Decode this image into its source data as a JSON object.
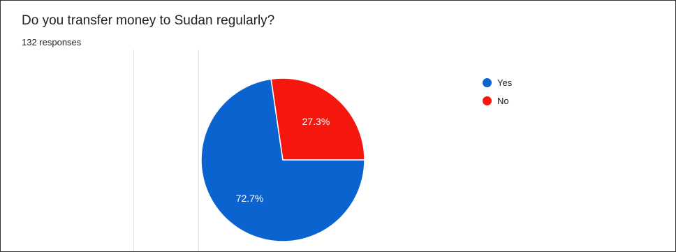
{
  "question": "Do you transfer money to Sudan regularly?",
  "responses": "132 responses",
  "chart_data": {
    "type": "pie",
    "title": "Do you transfer money to Sudan regularly?",
    "subtitle": "132 responses",
    "categories": [
      "Yes",
      "No"
    ],
    "values": [
      72.7,
      27.3
    ],
    "labels": [
      "72.7%",
      "27.3%"
    ],
    "colors": [
      "#0b63cf",
      "#f5170e"
    ],
    "legend": "right"
  }
}
